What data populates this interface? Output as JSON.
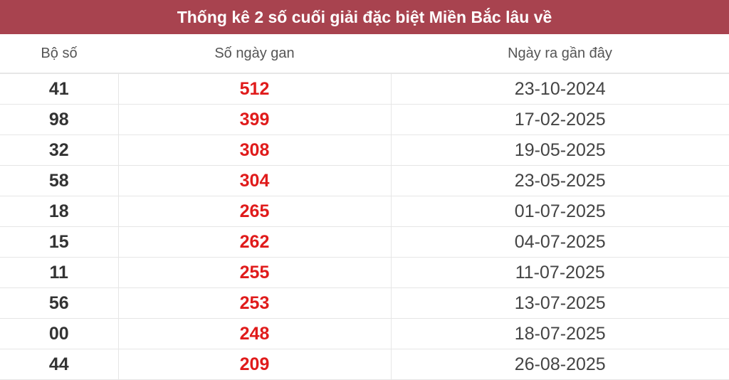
{
  "title": "Thống kê 2 số cuối giải đặc biệt Miền Bắc lâu về",
  "headers": [
    "Bộ số",
    "Số ngày gan",
    "Ngày ra gần đây"
  ],
  "rows": [
    {
      "number": "41",
      "days": "512",
      "date": "23-10-2024"
    },
    {
      "number": "98",
      "days": "399",
      "date": "17-02-2025"
    },
    {
      "number": "32",
      "days": "308",
      "date": "19-05-2025"
    },
    {
      "number": "58",
      "days": "304",
      "date": "23-05-2025"
    },
    {
      "number": "18",
      "days": "265",
      "date": "01-07-2025"
    },
    {
      "number": "15",
      "days": "262",
      "date": "04-07-2025"
    },
    {
      "number": "11",
      "days": "255",
      "date": "11-07-2025"
    },
    {
      "number": "56",
      "days": "253",
      "date": "13-07-2025"
    },
    {
      "number": "00",
      "days": "248",
      "date": "18-07-2025"
    },
    {
      "number": "44",
      "days": "209",
      "date": "26-08-2025"
    }
  ],
  "colors": {
    "header_bg": "#a8434f",
    "days_text": "#e01b1b"
  }
}
